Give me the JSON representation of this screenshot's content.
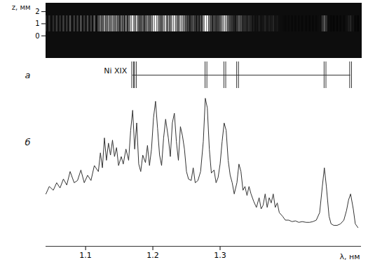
{
  "chart_data": [
    {
      "type": "image",
      "ylabel": "z, мм",
      "xlim": [
        1.041,
        1.51
      ],
      "ylim": [
        -1.8,
        2.7
      ],
      "yticks": [
        0,
        1,
        2
      ],
      "tick_labels": "y"
    },
    {
      "type": "markers",
      "title": "а",
      "label": "Ni XIX",
      "xlim": [
        1.041,
        1.51
      ],
      "x": [
        1.17,
        1.174,
        1.279,
        1.307,
        1.326,
        1.456,
        1.494
      ],
      "tick_labels": false
    },
    {
      "type": "line",
      "title": "б",
      "xlabel": "λ, нм",
      "color": "#333333",
      "xlim": [
        1.041,
        1.51
      ],
      "xticks": [
        1.1,
        1.2,
        1.3
      ],
      "ylim": [
        0,
        100
      ],
      "tick_labels": "x",
      "x": [
        1.041,
        1.046,
        1.052,
        1.057,
        1.062,
        1.067,
        1.072,
        1.077,
        1.083,
        1.088,
        1.093,
        1.098,
        1.103,
        1.108,
        1.113,
        1.119,
        1.122,
        1.125,
        1.128,
        1.131,
        1.134,
        1.137,
        1.14,
        1.143,
        1.146,
        1.149,
        1.153,
        1.156,
        1.16,
        1.164,
        1.167,
        1.17,
        1.173,
        1.176,
        1.179,
        1.182,
        1.185,
        1.189,
        1.192,
        1.195,
        1.198,
        1.201,
        1.204,
        1.207,
        1.21,
        1.213,
        1.216,
        1.219,
        1.223,
        1.226,
        1.229,
        1.232,
        1.235,
        1.238,
        1.241,
        1.244,
        1.247,
        1.25,
        1.253,
        1.257,
        1.26,
        1.263,
        1.267,
        1.271,
        1.275,
        1.278,
        1.281,
        1.284,
        1.287,
        1.291,
        1.294,
        1.297,
        1.3,
        1.303,
        1.306,
        1.309,
        1.312,
        1.315,
        1.318,
        1.321,
        1.325,
        1.328,
        1.331,
        1.334,
        1.337,
        1.34,
        1.343,
        1.346,
        1.35,
        1.354,
        1.358,
        1.361,
        1.364,
        1.367,
        1.37,
        1.373,
        1.376,
        1.379,
        1.382,
        1.385,
        1.388,
        1.393,
        1.397,
        1.402,
        1.407,
        1.412,
        1.417,
        1.422,
        1.428,
        1.433,
        1.438,
        1.443,
        1.448,
        1.452,
        1.455,
        1.458,
        1.462,
        1.465,
        1.469,
        1.474,
        1.479,
        1.484,
        1.488,
        1.491,
        1.494,
        1.498,
        1.501,
        1.505
      ],
      "values": [
        35,
        40,
        37.5,
        42.5,
        39,
        45,
        41,
        50,
        42.5,
        44,
        51,
        42.5,
        47.5,
        44,
        54,
        50,
        62.5,
        52.5,
        72.5,
        57.5,
        69,
        61,
        71,
        60,
        66,
        54,
        60,
        55,
        65,
        57.5,
        77.5,
        91,
        65,
        82.5,
        55,
        50,
        61,
        56,
        67.5,
        54,
        65,
        86,
        97,
        79,
        61,
        54,
        72.5,
        85,
        72.5,
        60,
        82.5,
        89,
        70,
        57.5,
        80,
        74,
        65,
        50,
        45,
        44,
        52.5,
        42.5,
        44,
        50,
        70,
        99,
        92.5,
        65,
        49,
        51,
        42.5,
        46,
        55,
        70,
        82.5,
        77.5,
        57.5,
        47.5,
        42.5,
        35,
        42.5,
        55,
        50,
        37.5,
        40,
        34,
        40,
        35,
        30,
        26,
        32.5,
        25,
        27.5,
        35,
        26,
        32.5,
        29,
        35,
        26,
        29,
        22.5,
        20,
        17.5,
        17.5,
        16.5,
        17,
        16,
        16.5,
        16,
        16,
        16.5,
        17.5,
        22.5,
        40,
        52.5,
        40,
        20,
        15,
        14,
        14,
        15,
        17.5,
        24,
        31,
        35,
        25,
        15,
        12.5
      ]
    }
  ]
}
